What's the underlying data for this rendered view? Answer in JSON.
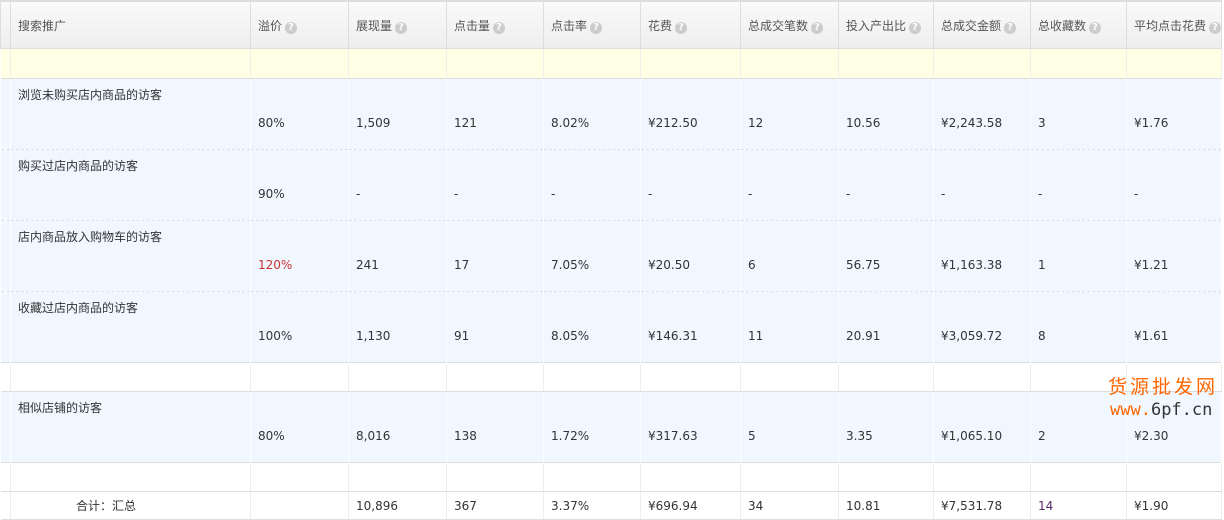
{
  "headers": [
    "搜索推广",
    "溢价",
    "展现量",
    "点击量",
    "点击率",
    "花费",
    "总成交笔数",
    "投入产出比",
    "总成交金额",
    "总收藏数",
    "平均点击花费"
  ],
  "rows": [
    {
      "name": "浏览未购买店内商品的访客",
      "values": [
        "80%",
        "1,509",
        "121",
        "8.02%",
        "¥212.50",
        "12",
        "10.56",
        "¥2,243.58",
        "3",
        "¥1.76"
      ]
    },
    {
      "name": "购买过店内商品的访客",
      "values": [
        "90%",
        "-",
        "-",
        "-",
        "-",
        "-",
        "-",
        "-",
        "-",
        "-"
      ]
    },
    {
      "name": "店内商品放入购物车的访客",
      "values": [
        "120%",
        "241",
        "17",
        "7.05%",
        "¥20.50",
        "6",
        "56.75",
        "¥1,163.38",
        "1",
        "¥1.21"
      ]
    },
    {
      "name": "收藏过店内商品的访客",
      "values": [
        "100%",
        "1,130",
        "91",
        "8.05%",
        "¥146.31",
        "11",
        "20.91",
        "¥3,059.72",
        "8",
        "¥1.61"
      ]
    },
    {
      "name": "相似店铺的访客",
      "values": [
        "80%",
        "8,016",
        "138",
        "1.72%",
        "¥317.63",
        "5",
        "3.35",
        "¥1,065.10",
        "2",
        "¥2.30"
      ]
    }
  ],
  "total": {
    "label": "合计：汇总",
    "values": [
      "",
      "10,896",
      "367",
      "3.37%",
      "¥696.94",
      "34",
      "10.81",
      "¥7,531.78",
      "14",
      "¥1.90"
    ]
  },
  "watermark": {
    "line1": "货源批发网",
    "line2a": "www.",
    "line2b": "6pf.cn"
  },
  "colors": {
    "highlight": "#cc3333",
    "row_bg": "#f0f7ff",
    "yellow_row": "#ffffe6"
  }
}
